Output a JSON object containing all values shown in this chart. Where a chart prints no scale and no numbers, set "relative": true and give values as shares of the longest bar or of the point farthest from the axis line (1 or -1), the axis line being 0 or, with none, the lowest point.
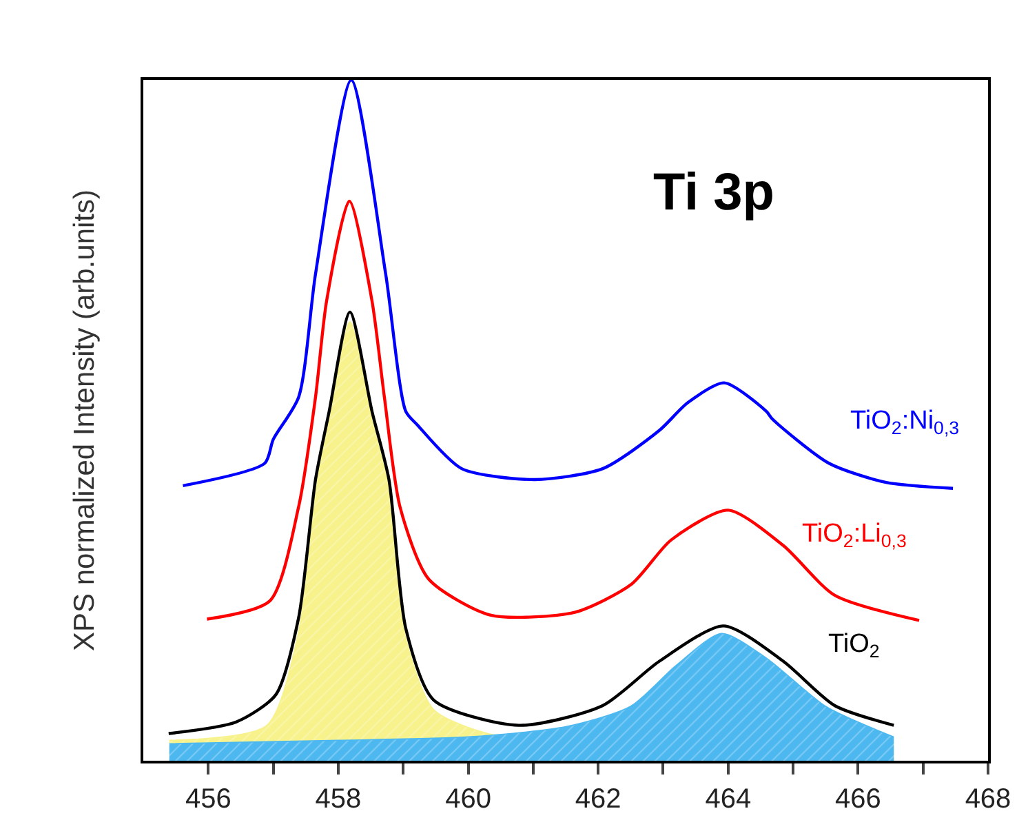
{
  "chart_data": {
    "type": "line",
    "relative": true,
    "ylabel": "XPS normalized Intensity (arb.units)",
    "annotations": [
      "Ti 3p"
    ],
    "xlim": [
      455,
      468
    ],
    "xticks": [
      456,
      {
        "value": 457,
        "label": null
      },
      458,
      {
        "value": 459,
        "label": null
      },
      460,
      {
        "value": 461,
        "label": null
      },
      462,
      {
        "value": 463,
        "label": null
      },
      464,
      {
        "value": 465,
        "label": null
      },
      466,
      {
        "value": 467,
        "label": null
      },
      468
    ],
    "series": [
      {
        "type": "area",
        "color": "#f7f28c",
        "x": [
          455.4,
          456.9,
          457.39,
          457.65,
          457.86,
          458.18,
          458.52,
          458.78,
          459.04,
          459.47,
          460.3,
          461.5,
          466.55
        ],
        "values": [
          0.03,
          0.052,
          0.19,
          0.4,
          0.5,
          0.645,
          0.5,
          0.4,
          0.18,
          0.075,
          0.04,
          0.03,
          0.026
        ]
      },
      {
        "type": "area",
        "color": "#4db8f0",
        "x": [
          455.4,
          458.0,
          460.0,
          461.5,
          462.5,
          463.2,
          463.9,
          464.6,
          465.5,
          466.55
        ],
        "values": [
          0.025,
          0.03,
          0.035,
          0.05,
          0.08,
          0.14,
          0.187,
          0.15,
          0.08,
          0.035
        ]
      },
      {
        "name": "TiO$_{2}$",
        "color": "#000000",
        "x": [
          455.39,
          456.43,
          457.04,
          457.39,
          457.65,
          457.86,
          458.18,
          458.52,
          458.78,
          459.04,
          459.47,
          460.78,
          462.07,
          462.94,
          463.93,
          464.85,
          465.64,
          466.55
        ],
        "values": [
          0.04,
          0.057,
          0.097,
          0.21,
          0.413,
          0.513,
          0.659,
          0.513,
          0.413,
          0.194,
          0.089,
          0.052,
          0.081,
          0.146,
          0.198,
          0.146,
          0.081,
          0.052
        ]
      },
      {
        "name": "TiO$_{2}$:Li$_{0,3}$",
        "color": "#ff0000",
        "x": [
          455.98,
          456.95,
          457.39,
          457.65,
          457.82,
          458.17,
          458.52,
          458.71,
          458.95,
          459.39,
          460.34,
          461.64,
          462.51,
          463.12,
          464.0,
          464.85,
          465.64,
          466.94
        ],
        "values": [
          0.208,
          0.235,
          0.373,
          0.534,
          0.675,
          0.822,
          0.675,
          0.534,
          0.373,
          0.267,
          0.214,
          0.218,
          0.259,
          0.324,
          0.368,
          0.316,
          0.243,
          0.206
        ]
      },
      {
        "name": "TiO$_{2}$:Ni$_{0,3}$",
        "color": "#0000ff",
        "x": [
          455.61,
          456.87,
          457.0,
          457.39,
          457.65,
          458.2,
          458.73,
          459.04,
          459.21,
          459.9,
          461.03,
          462.07,
          462.94,
          463.38,
          463.94,
          464.59,
          464.68,
          465.55,
          466.42,
          467.46
        ],
        "values": [
          0.404,
          0.437,
          0.472,
          0.534,
          0.715,
          1.0,
          0.715,
          0.513,
          0.494,
          0.429,
          0.413,
          0.429,
          0.485,
          0.526,
          0.555,
          0.513,
          0.502,
          0.437,
          0.409,
          0.4
        ]
      }
    ]
  }
}
